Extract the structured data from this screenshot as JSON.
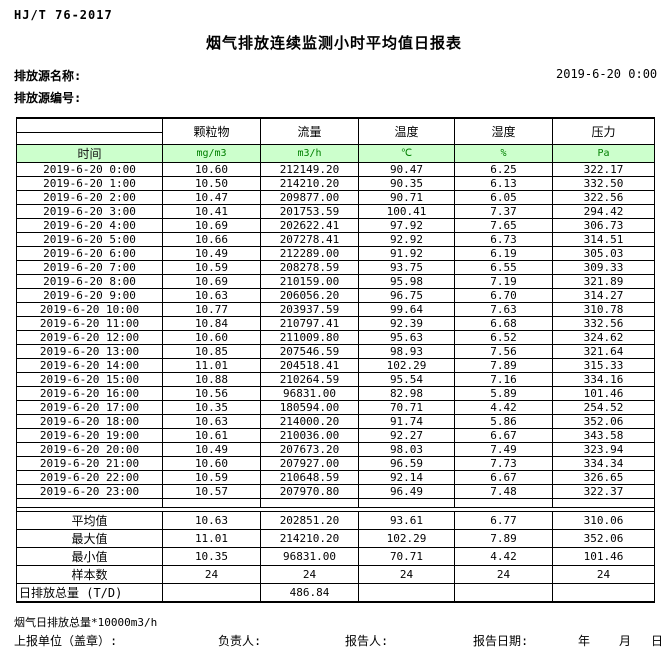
{
  "header": {
    "standard": "HJ/T 76-2017",
    "title": "烟气排放连续监测小时平均值日报表",
    "source_name_label": "排放源名称:",
    "source_code_label": "排放源编号:",
    "datetime": "2019-6-20 0:00"
  },
  "table": {
    "time_label": "时间",
    "columns": [
      "颗粒物",
      "流量",
      "温度",
      "湿度",
      "压力"
    ],
    "units": [
      "mg/m3",
      "m3/h",
      "℃",
      "%",
      "Pa"
    ],
    "rows": [
      {
        "time": "2019-6-20 0:00",
        "values": [
          "10.60",
          "212149.20",
          "90.47",
          "6.25",
          "322.17"
        ]
      },
      {
        "time": "2019-6-20 1:00",
        "values": [
          "10.50",
          "214210.20",
          "90.35",
          "6.13",
          "332.50"
        ]
      },
      {
        "time": "2019-6-20 2:00",
        "values": [
          "10.47",
          "209877.00",
          "90.71",
          "6.05",
          "322.56"
        ]
      },
      {
        "time": "2019-6-20 3:00",
        "values": [
          "10.41",
          "201753.59",
          "100.41",
          "7.37",
          "294.42"
        ]
      },
      {
        "time": "2019-6-20 4:00",
        "values": [
          "10.69",
          "202622.41",
          "97.92",
          "7.65",
          "306.73"
        ]
      },
      {
        "time": "2019-6-20 5:00",
        "values": [
          "10.66",
          "207278.41",
          "92.92",
          "6.73",
          "314.51"
        ]
      },
      {
        "time": "2019-6-20 6:00",
        "values": [
          "10.49",
          "212289.00",
          "91.92",
          "6.19",
          "305.03"
        ]
      },
      {
        "time": "2019-6-20 7:00",
        "values": [
          "10.59",
          "208278.59",
          "93.75",
          "6.55",
          "309.33"
        ]
      },
      {
        "time": "2019-6-20 8:00",
        "values": [
          "10.69",
          "210159.00",
          "95.98",
          "7.19",
          "321.89"
        ]
      },
      {
        "time": "2019-6-20 9:00",
        "values": [
          "10.63",
          "206056.20",
          "96.75",
          "6.70",
          "314.27"
        ]
      },
      {
        "time": "2019-6-20 10:00",
        "values": [
          "10.77",
          "203937.59",
          "99.64",
          "7.63",
          "310.78"
        ]
      },
      {
        "time": "2019-6-20 11:00",
        "values": [
          "10.84",
          "210797.41",
          "92.39",
          "6.68",
          "332.56"
        ]
      },
      {
        "time": "2019-6-20 12:00",
        "values": [
          "10.60",
          "211009.80",
          "95.63",
          "6.52",
          "324.62"
        ]
      },
      {
        "time": "2019-6-20 13:00",
        "values": [
          "10.85",
          "207546.59",
          "98.93",
          "7.56",
          "321.64"
        ]
      },
      {
        "time": "2019-6-20 14:00",
        "values": [
          "11.01",
          "204518.41",
          "102.29",
          "7.89",
          "315.33"
        ]
      },
      {
        "time": "2019-6-20 15:00",
        "values": [
          "10.88",
          "210264.59",
          "95.54",
          "7.16",
          "334.16"
        ]
      },
      {
        "time": "2019-6-20 16:00",
        "values": [
          "10.56",
          "96831.00",
          "82.98",
          "5.89",
          "101.46"
        ]
      },
      {
        "time": "2019-6-20 17:00",
        "values": [
          "10.35",
          "180594.00",
          "70.71",
          "4.42",
          "254.52"
        ]
      },
      {
        "time": "2019-6-20 18:00",
        "values": [
          "10.63",
          "214000.20",
          "91.74",
          "5.86",
          "352.06"
        ]
      },
      {
        "time": "2019-6-20 19:00",
        "values": [
          "10.61",
          "210036.00",
          "92.27",
          "6.67",
          "343.58"
        ]
      },
      {
        "time": "2019-6-20 20:00",
        "values": [
          "10.49",
          "207673.20",
          "98.03",
          "7.49",
          "323.94"
        ]
      },
      {
        "time": "2019-6-20 21:00",
        "values": [
          "10.60",
          "207927.00",
          "96.59",
          "7.73",
          "334.34"
        ]
      },
      {
        "time": "2019-6-20 22:00",
        "values": [
          "10.59",
          "210648.59",
          "92.14",
          "6.67",
          "326.65"
        ]
      },
      {
        "time": "2019-6-20 23:00",
        "values": [
          "10.57",
          "207970.80",
          "96.49",
          "7.48",
          "322.37"
        ]
      }
    ],
    "summary": [
      {
        "label": "平均值",
        "values": [
          "10.63",
          "202851.20",
          "93.61",
          "6.77",
          "310.06"
        ]
      },
      {
        "label": "最大值",
        "values": [
          "11.01",
          "214210.20",
          "102.29",
          "7.89",
          "352.06"
        ]
      },
      {
        "label": "最小值",
        "values": [
          "10.35",
          "96831.00",
          "70.71",
          "4.42",
          "101.46"
        ]
      },
      {
        "label": "样本数",
        "values": [
          "24",
          "24",
          "24",
          "24",
          "24"
        ]
      },
      {
        "label": "日排放总量 (T/D)",
        "values": [
          "",
          "486.84",
          "",
          "",
          ""
        ]
      }
    ]
  },
  "footer": {
    "note": "烟气日排放总量*10000m3/h",
    "stamp_label": "上报单位（盖章）:",
    "responsible_label": "负责人:",
    "reporter_label": "报告人:",
    "report_date_label": "报告日期:",
    "year_label": "年",
    "month_label": "月",
    "day_label": "日"
  },
  "colors": {
    "units_row_bg": "#ccffcc",
    "units_text": "#008000"
  }
}
